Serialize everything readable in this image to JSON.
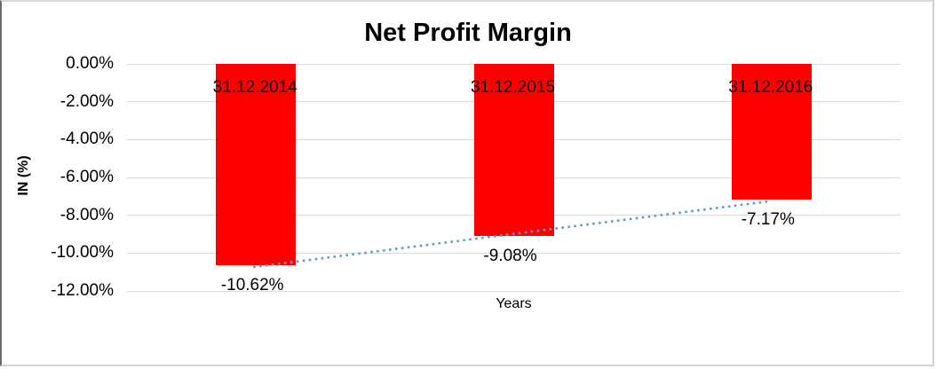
{
  "chart_data": {
    "type": "bar",
    "title": "Net Profit Margin",
    "categories": [
      "31.12.2014",
      "31.12.2015",
      "31.12.2016"
    ],
    "values": [
      -10.62,
      -9.08,
      -7.17
    ],
    "data_labels": [
      "-10.62%",
      "-9.08%",
      "-7.17%"
    ],
    "xlabel": "Years",
    "ylabel": "IN (%)",
    "ylim": [
      -12,
      0
    ],
    "y_ticks": [
      {
        "value": 0,
        "label": "0.00%"
      },
      {
        "value": -2,
        "label": "-2.00%"
      },
      {
        "value": -4,
        "label": "-4.00%"
      },
      {
        "value": -6,
        "label": "-6.00%"
      },
      {
        "value": -8,
        "label": "-8.00%"
      },
      {
        "value": -10,
        "label": "-10.00%"
      },
      {
        "value": -12,
        "label": "-12.00%"
      }
    ],
    "grid": true,
    "legend": "none",
    "colors": {
      "bar": "#FF0000",
      "trendline": "#5B9BD5",
      "gridline": "#D9D9D9",
      "text": "#000000"
    },
    "trendline": {
      "style": "dotted",
      "from_category": "31.12.2014",
      "to_category": "31.12.2016"
    }
  }
}
